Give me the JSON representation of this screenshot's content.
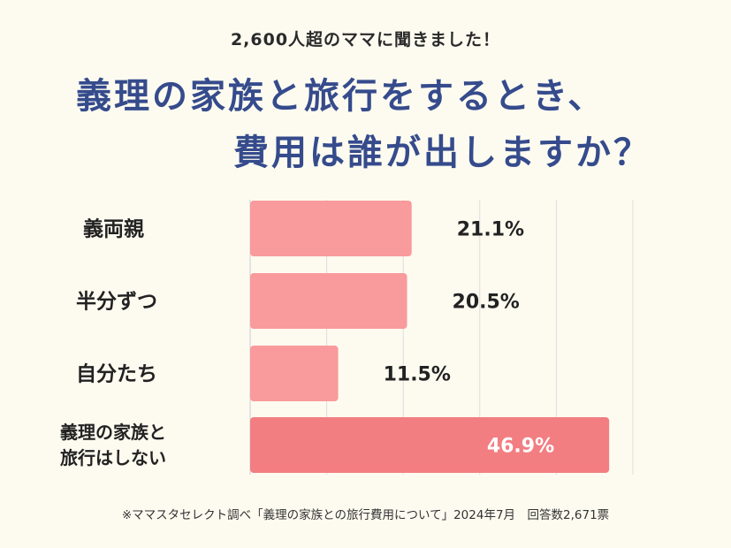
{
  "header": {
    "subtitle": "2,600人超のママに聞きました！",
    "title_line1": "義理の家族と旅行をするとき、",
    "title_line2": "費用は誰が出しますか？"
  },
  "chart_data": {
    "type": "bar",
    "orientation": "horizontal",
    "categories": [
      "義両親",
      "半分ずつ",
      "自分たち",
      "義理の家族と\n旅行はしない"
    ],
    "values": [
      21.1,
      20.5,
      11.5,
      46.9
    ],
    "value_labels": [
      "21.1%",
      "20.5%",
      "11.5%",
      "46.9%"
    ],
    "xlim": [
      0,
      50
    ],
    "grid": true,
    "colors": {
      "bar": "#f99a9c",
      "bar_highlight": "#f27e82",
      "label_inside": "#ffffff",
      "label_outside": "#222222",
      "grid": "#dddddd"
    }
  },
  "footer": {
    "note": "※ママスタセレクト調べ「義理の家族との旅行費用について」2024年7月　回答数2,671票"
  }
}
